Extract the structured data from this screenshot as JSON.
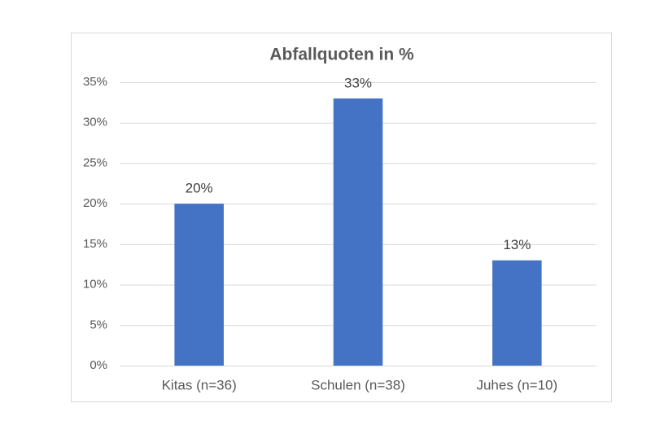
{
  "chart_data": {
    "type": "bar",
    "title": "Abfallquoten in %",
    "categories": [
      "Kitas (n=36)",
      "Schulen (n=38)",
      "Juhes (n=10)"
    ],
    "values": [
      20,
      33,
      13
    ],
    "value_labels": [
      "20%",
      "33%",
      "13%"
    ],
    "color": "#4472c4",
    "ylim": [
      0,
      35
    ],
    "yticks": [
      {
        "value": 0,
        "label": "0%"
      },
      {
        "value": 5,
        "label": "5%"
      },
      {
        "value": 10,
        "label": "10%"
      },
      {
        "value": 15,
        "label": "15%"
      },
      {
        "value": 20,
        "label": "20%"
      },
      {
        "value": 25,
        "label": "25%"
      },
      {
        "value": 30,
        "label": "30%"
      },
      {
        "value": 35,
        "label": "35%"
      }
    ],
    "grid": true
  }
}
